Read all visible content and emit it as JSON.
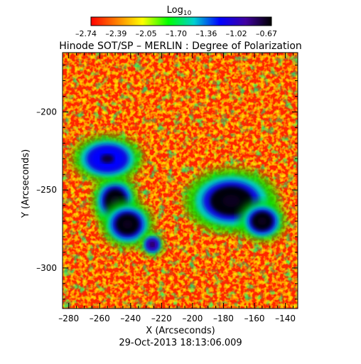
{
  "chart_data": {
    "type": "heatmap",
    "title": "Hinode SOT/SP – MERLIN : Degree of Polarization",
    "colorbar": {
      "label": "Log",
      "label_subscript": "10",
      "ticks": [
        "–2.74",
        "–2.39",
        "–2.05",
        "–1.70",
        "–1.36",
        "–1.02",
        "–0.67"
      ],
      "range": [
        -2.74,
        -0.67
      ],
      "colormap": [
        "#ff0000",
        "#ff8000",
        "#ffff00",
        "#00ff00",
        "#00d0d0",
        "#0000ff",
        "#4000a0",
        "#000000"
      ]
    },
    "xlabel": "X (Arcseconds)",
    "ylabel": "Y (Arcseconds)",
    "xlim": [
      -284,
      -132
    ],
    "ylim": [
      -326,
      -162
    ],
    "xticks": [
      -280,
      -260,
      -240,
      -220,
      -200,
      -180,
      -160,
      -140
    ],
    "yticks": [
      -300,
      -250,
      -200
    ],
    "xtick_labels": [
      "–280",
      "–260",
      "–240",
      "–220",
      "–200",
      "–180",
      "–160",
      "–140"
    ],
    "ytick_labels": [
      "–300",
      "–250",
      "–200"
    ],
    "timestamp": "29-Oct-2013 18:13:06.009",
    "features": [
      {
        "name": "sunspot-left-upper",
        "x": -250,
        "y": -257,
        "rx": 8,
        "ry": 9,
        "value": -0.75
      },
      {
        "name": "sunspot-left-lower",
        "x": -242,
        "y": -272,
        "rx": 9,
        "ry": 8,
        "value": -0.72
      },
      {
        "name": "sunspot-right-main",
        "x": -175,
        "y": -257,
        "rx": 16,
        "ry": 11,
        "value": -0.72
      },
      {
        "name": "sunspot-right-lower",
        "x": -155,
        "y": -270,
        "rx": 8,
        "ry": 7,
        "value": -0.75
      },
      {
        "name": "plage-upper-left",
        "x": -255,
        "y": -230,
        "rx": 12,
        "ry": 8,
        "value": -1.15
      },
      {
        "name": "plage-small-left",
        "x": -226,
        "y": -285,
        "rx": 4,
        "ry": 4,
        "value": -1.1
      }
    ]
  }
}
